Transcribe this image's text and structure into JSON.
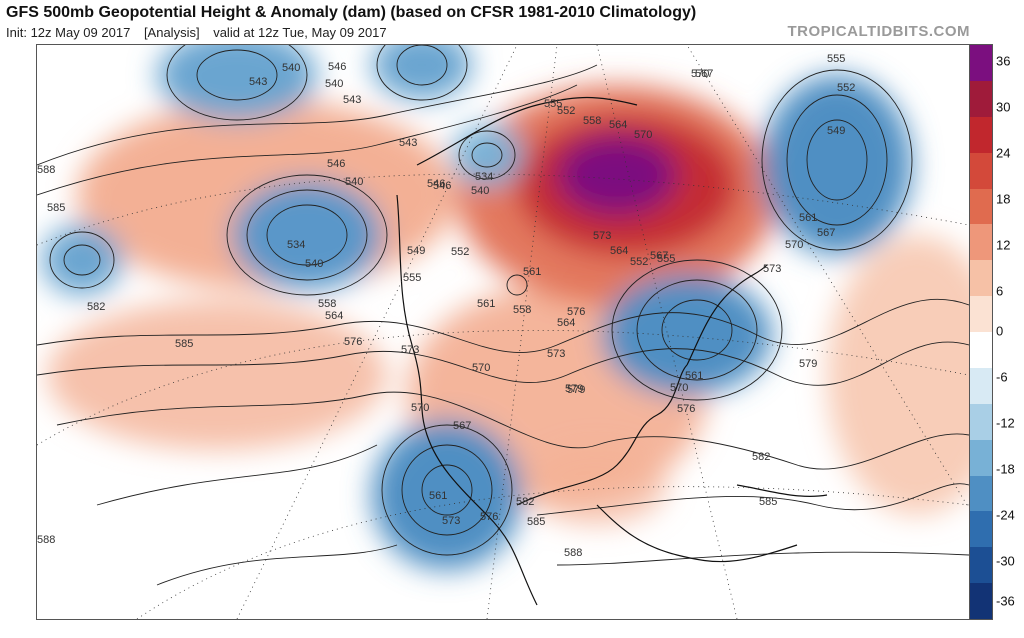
{
  "header": {
    "title": "GFS 500mb Geopotential Height & Anomaly (dam) (based on CFSR 1981-2010 Climatology)",
    "init": "Init: 12z May 09 2017",
    "analysis": "[Analysis]",
    "valid": "valid at 12z Tue, May 09 2017",
    "credit": "TROPICALTIDBITS.COM"
  },
  "colorbar": {
    "ticks": [
      "36",
      "30",
      "24",
      "18",
      "12",
      "6",
      "0",
      "-6",
      "-12",
      "-18",
      "-24",
      "-30",
      "-36"
    ],
    "colors": [
      "#7b0f7f",
      "#9f1b3a",
      "#c1272d",
      "#d3493a",
      "#e06b4f",
      "#ee977a",
      "#f6c1a6",
      "#fbe2d3",
      "#ffffff",
      "#d8eaf4",
      "#a9cfe6",
      "#78b1d6",
      "#4f8fc3",
      "#2f6eaf",
      "#1c4f94",
      "#123375"
    ]
  },
  "map": {
    "contour_labels": [
      "588",
      "585",
      "582",
      "543",
      "540",
      "546",
      "540",
      "543",
      "546",
      "540",
      "534",
      "546",
      "543",
      "540",
      "534",
      "540",
      "549",
      "552",
      "555",
      "558",
      "564",
      "570",
      "561",
      "558",
      "564",
      "573",
      "576",
      "585",
      "573",
      "570",
      "567",
      "561",
      "573",
      "576",
      "579",
      "570",
      "576",
      "561",
      "582",
      "585",
      "588",
      "555",
      "552",
      "549",
      "561",
      "567",
      "570",
      "573",
      "579",
      "582",
      "585",
      "588",
      "567",
      "570",
      "576",
      "546",
      "552",
      "555",
      "558",
      "564",
      "573",
      "570",
      "567",
      "561",
      "552",
      "555",
      "564",
      "579"
    ]
  }
}
